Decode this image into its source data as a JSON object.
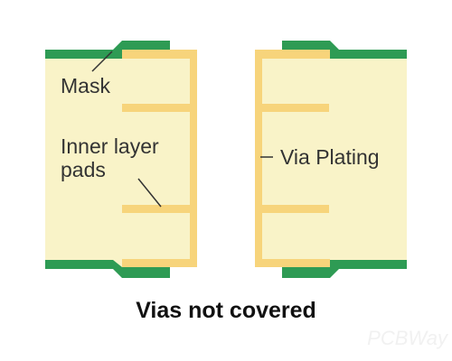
{
  "labels": {
    "mask": "Mask",
    "inner_line1": "Inner layer",
    "inner_line2": "pads",
    "via_plating": "Via Plating"
  },
  "caption": "Vias not covered",
  "watermark": "PCBWay",
  "colors": {
    "substrate": "#f9f3c8",
    "copper": "#f7d47b",
    "mask": "#2e9b54",
    "leader": "#333333",
    "text": "#333333",
    "caption": "#111111"
  }
}
